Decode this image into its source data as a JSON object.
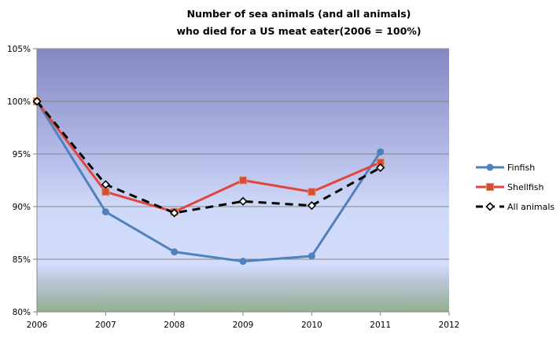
{
  "chart_data": {
    "type": "line",
    "title": [
      "Number of sea animals (and all animals)",
      "who died for a US meat eater(2006 = 100%)"
    ],
    "xlabel": "",
    "ylabel": "",
    "x": [
      2006,
      2007,
      2008,
      2009,
      2010,
      2011
    ],
    "xlim": [
      2006,
      2012
    ],
    "x_ticks": [
      "2006",
      "2007",
      "2008",
      "2009",
      "2010",
      "2011",
      "2012"
    ],
    "ylim": [
      80,
      105
    ],
    "y_ticks": [
      "80%",
      "85%",
      "90%",
      "95%",
      "100%",
      "105%"
    ],
    "y_tick_values": [
      80,
      85,
      90,
      95,
      100,
      105
    ],
    "grid": true,
    "legend_position": "right",
    "series": [
      {
        "name": "Finfish",
        "color": "#4f81bd",
        "marker": "circle",
        "dash": false,
        "values": [
          100,
          89.5,
          85.7,
          84.8,
          85.3,
          95.2
        ]
      },
      {
        "name": "Shellfish",
        "color": "#e0463c",
        "marker": "square",
        "dash": false,
        "values": [
          100,
          91.4,
          89.5,
          92.5,
          91.4,
          94.2
        ]
      },
      {
        "name": "All animals",
        "color": "#000000",
        "marker": "diamond",
        "dash": true,
        "values": [
          100,
          92.1,
          89.4,
          90.5,
          90.1,
          93.7
        ]
      }
    ]
  }
}
